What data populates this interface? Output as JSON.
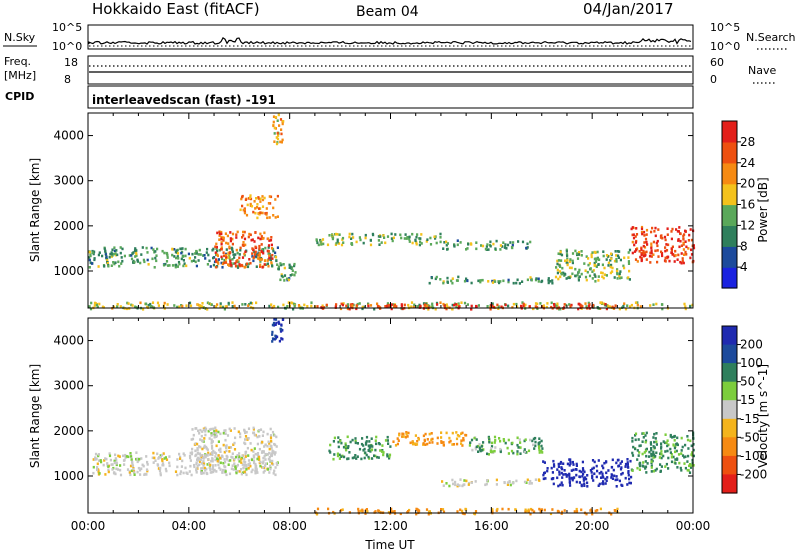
{
  "header": {
    "title": "Hokkaido East (fitACF)",
    "beam": "Beam 04",
    "date": "04/Jan/2017"
  },
  "sky_panel": {
    "left_label": "N.Sky",
    "right_label": "N.Search",
    "left_ticks": [
      "10^5",
      "10^0"
    ],
    "right_ticks": [
      "10^5",
      "10^0"
    ]
  },
  "freq_panel": {
    "left_label_line1": "Freq.",
    "left_label_line2": "[MHz]",
    "left_ticks": [
      "18",
      "8"
    ],
    "right_label": "Nave",
    "right_ticks": [
      "60",
      "0"
    ]
  },
  "cpid": {
    "label": "CPID",
    "value": "interleavedscan (fast) -191"
  },
  "colors": {
    "power_scale": [
      "#1a22e0",
      "#1c4a9c",
      "#2f7f5c",
      "#5aa85a",
      "#f4c21c",
      "#f68a12",
      "#ee5010",
      "#e31f1a"
    ],
    "velocity_scale": [
      "#1f2ab0",
      "#1c4a9c",
      "#2f7f5c",
      "#7ccd3c",
      "#c8c8c8",
      "#f4b41c",
      "#f68a12",
      "#ee5010",
      "#e31f1a"
    ],
    "ground_scatter": "#bebebe"
  },
  "chart_data": [
    {
      "type": "heatmap",
      "name": "power-panel",
      "ylabel": "Slant Range [km]",
      "yticks": [
        "1000",
        "2000",
        "3000",
        "4000"
      ],
      "ylim": [
        180,
        4500
      ],
      "xlim_hours": [
        0,
        24
      ],
      "colorbar_label": "Power [dB]",
      "colorbar_ticks": [
        "4",
        "8",
        "12",
        "16",
        "20",
        "24",
        "28"
      ],
      "colorbar_range": [
        0,
        32
      ],
      "echo_regions": [
        {
          "t0": 0.0,
          "t1": 7.5,
          "r0": 1100,
          "r1": 1550,
          "power": 12
        },
        {
          "t0": 5.0,
          "t1": 7.3,
          "r0": 1100,
          "r1": 1900,
          "power": 26
        },
        {
          "t0": 6.0,
          "t1": 7.5,
          "r0": 2200,
          "r1": 2700,
          "power": 22
        },
        {
          "t0": 7.3,
          "t1": 7.7,
          "r0": 3800,
          "r1": 4500,
          "power": 20
        },
        {
          "t0": 7.5,
          "t1": 8.2,
          "r0": 800,
          "r1": 1200,
          "power": 12
        },
        {
          "t0": 9.0,
          "t1": 14.0,
          "r0": 1600,
          "r1": 1850,
          "power": 14
        },
        {
          "t0": 14.0,
          "t1": 17.5,
          "r0": 1500,
          "r1": 1700,
          "power": 12
        },
        {
          "t0": 13.5,
          "t1": 18.5,
          "r0": 750,
          "r1": 900,
          "power": 12
        },
        {
          "t0": 18.5,
          "t1": 21.5,
          "r0": 800,
          "r1": 1500,
          "power": 14
        },
        {
          "t0": 21.5,
          "t1": 24.0,
          "r0": 1200,
          "r1": 2000,
          "power": 28
        },
        {
          "t0": 0.0,
          "t1": 24.0,
          "r0": 180,
          "r1": 330,
          "power": 16
        },
        {
          "t0": 9.0,
          "t1": 21.0,
          "r0": 180,
          "r1": 300,
          "power": 28
        }
      ]
    },
    {
      "type": "heatmap",
      "name": "velocity-panel",
      "ylabel": "Slant Range [km]",
      "yticks": [
        "1000",
        "2000",
        "3000",
        "4000"
      ],
      "ylim": [
        180,
        4500
      ],
      "xlim_hours": [
        0,
        24
      ],
      "xticks": [
        "00:00",
        "04:00",
        "08:00",
        "12:00",
        "16:00",
        "20:00",
        "00:00"
      ],
      "xlabel": "Time UT",
      "colorbar_label": "Velocity [m s^-1]",
      "colorbar_ticks": [
        "200",
        "100",
        "50",
        "15",
        "-15",
        "-50",
        "-100",
        "-200"
      ],
      "echo_regions": [
        {
          "t0": 0.0,
          "t1": 7.5,
          "r0": 1050,
          "r1": 1550,
          "velocity": 0
        },
        {
          "t0": 4.0,
          "t1": 7.5,
          "r0": 1100,
          "r1": 2100,
          "velocity": 0
        },
        {
          "t0": 7.2,
          "t1": 7.7,
          "r0": 4000,
          "r1": 4500,
          "velocity": 150
        },
        {
          "t0": 9.5,
          "t1": 12.0,
          "r0": 1400,
          "r1": 1900,
          "velocity": 40
        },
        {
          "t0": 12.0,
          "t1": 15.0,
          "r0": 1700,
          "r1": 2000,
          "velocity": -40
        },
        {
          "t0": 15.0,
          "t1": 18.0,
          "r0": 1500,
          "r1": 1900,
          "velocity": 30
        },
        {
          "t0": 14.0,
          "t1": 18.0,
          "r0": 800,
          "r1": 950,
          "velocity": 0
        },
        {
          "t0": 18.0,
          "t1": 21.5,
          "r0": 800,
          "r1": 1400,
          "velocity": 180
        },
        {
          "t0": 21.5,
          "t1": 24.0,
          "r0": 1100,
          "r1": 2000,
          "velocity": 40
        },
        {
          "t0": 9.0,
          "t1": 21.0,
          "r0": 180,
          "r1": 300,
          "velocity": -40
        }
      ]
    }
  ]
}
